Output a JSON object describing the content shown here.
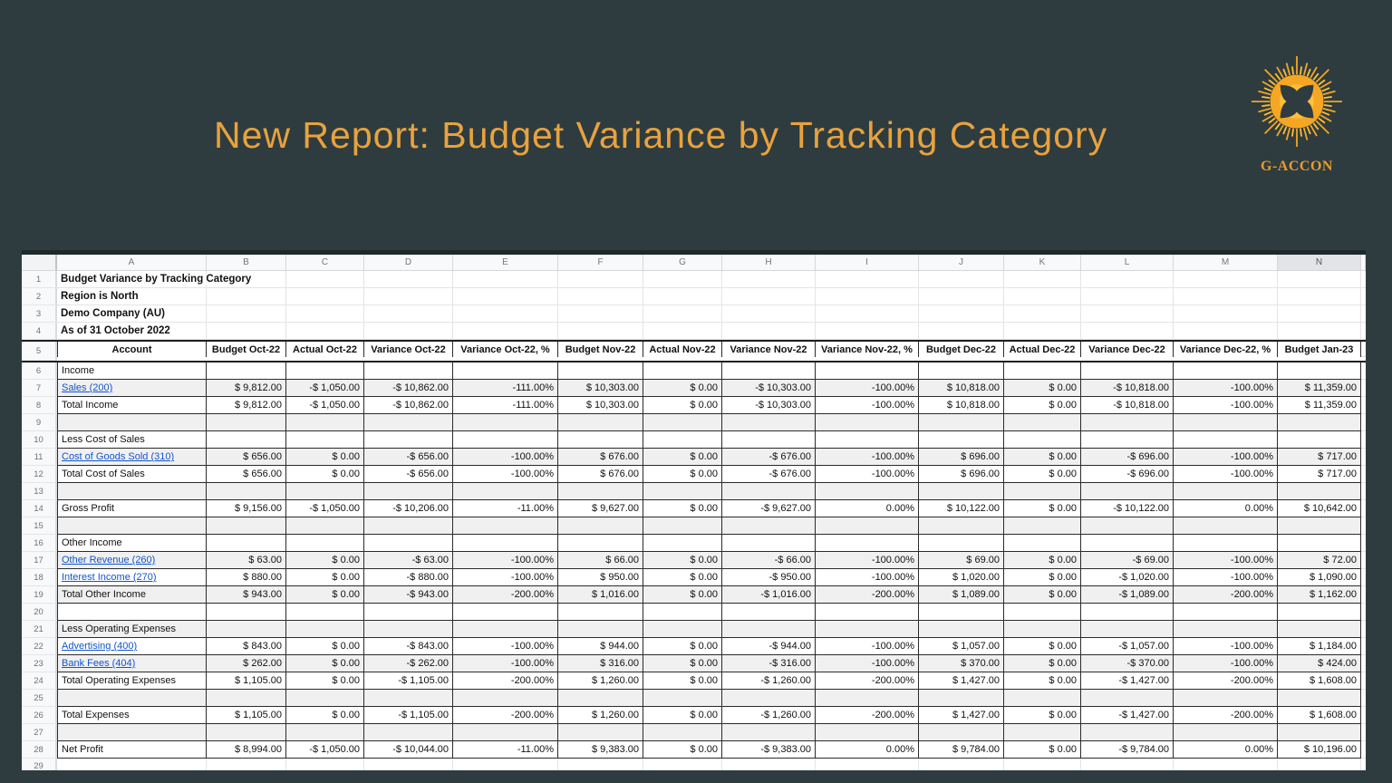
{
  "slide": {
    "title": "New Report: Budget Variance by Tracking Category"
  },
  "logo": {
    "text": "G-ACCON",
    "orange": "#F5A623",
    "yellow": "#FFBE3B"
  },
  "colors": {
    "background": "#2E3C3F",
    "title_text": "#E8A23E",
    "link": "#1155CC",
    "row_band": "#F0F0F0"
  },
  "spreadsheet": {
    "column_letters": [
      "A",
      "B",
      "C",
      "D",
      "E",
      "F",
      "G",
      "H",
      "I",
      "J",
      "K",
      "L",
      "M",
      "N"
    ],
    "selected_column": "N",
    "row_numbers_visible": "1-29",
    "meta_rows": [
      {
        "row": 1,
        "text": "Budget Variance by Tracking Category"
      },
      {
        "row": 2,
        "text": "Region is North"
      },
      {
        "row": 3,
        "text": "Demo Company (AU)"
      },
      {
        "row": 4,
        "text": "As of 31 October 2022"
      }
    ],
    "header": {
      "row": 5,
      "cells": [
        "Account",
        "Budget Oct-22",
        "Actual Oct-22",
        "Variance Oct-22",
        "Variance Oct-22, %",
        "Budget Nov-22",
        "Actual Nov-22",
        "Variance Nov-22",
        "Variance Nov-22, %",
        "Budget Dec-22",
        "Actual Dec-22",
        "Variance Dec-22",
        "Variance Dec-22, %",
        "Budget Jan-23"
      ]
    },
    "rows": [
      {
        "row": 6,
        "type": "section",
        "label": "Income",
        "values": [
          "",
          "",
          "",
          "",
          "",
          "",
          "",
          "",
          "",
          "",
          "",
          "",
          ""
        ]
      },
      {
        "row": 7,
        "type": "link",
        "label": "Sales (200)",
        "values": [
          "$ 9,812.00",
          "-$ 1,050.00",
          "-$ 10,862.00",
          "-111.00%",
          "$ 10,303.00",
          "$ 0.00",
          "-$ 10,303.00",
          "-100.00%",
          "$ 10,818.00",
          "$ 0.00",
          "-$ 10,818.00",
          "-100.00%",
          "$ 11,359.00"
        ]
      },
      {
        "row": 8,
        "type": "total",
        "label": "Total Income",
        "values": [
          "$ 9,812.00",
          "-$ 1,050.00",
          "-$ 10,862.00",
          "-111.00%",
          "$ 10,303.00",
          "$ 0.00",
          "-$ 10,303.00",
          "-100.00%",
          "$ 10,818.00",
          "$ 0.00",
          "-$ 10,818.00",
          "-100.00%",
          "$ 11,359.00"
        ]
      },
      {
        "row": 9,
        "type": "empty",
        "label": "",
        "values": [
          "",
          "",
          "",
          "",
          "",
          "",
          "",
          "",
          "",
          "",
          "",
          "",
          ""
        ]
      },
      {
        "row": 10,
        "type": "section",
        "label": "Less Cost of Sales",
        "values": [
          "",
          "",
          "",
          "",
          "",
          "",
          "",
          "",
          "",
          "",
          "",
          "",
          ""
        ]
      },
      {
        "row": 11,
        "type": "link",
        "label": "Cost of Goods Sold (310)",
        "values": [
          "$ 656.00",
          "$ 0.00",
          "-$ 656.00",
          "-100.00%",
          "$ 676.00",
          "$ 0.00",
          "-$ 676.00",
          "-100.00%",
          "$ 696.00",
          "$ 0.00",
          "-$ 696.00",
          "-100.00%",
          "$ 717.00"
        ]
      },
      {
        "row": 12,
        "type": "total",
        "label": "Total Cost of Sales",
        "values": [
          "$ 656.00",
          "$ 0.00",
          "-$ 656.00",
          "-100.00%",
          "$ 676.00",
          "$ 0.00",
          "-$ 676.00",
          "-100.00%",
          "$ 696.00",
          "$ 0.00",
          "-$ 696.00",
          "-100.00%",
          "$ 717.00"
        ]
      },
      {
        "row": 13,
        "type": "empty",
        "label": "",
        "values": [
          "",
          "",
          "",
          "",
          "",
          "",
          "",
          "",
          "",
          "",
          "",
          "",
          ""
        ]
      },
      {
        "row": 14,
        "type": "total",
        "label": "Gross Profit",
        "values": [
          "$ 9,156.00",
          "-$ 1,050.00",
          "-$ 10,206.00",
          "-11.00%",
          "$ 9,627.00",
          "$ 0.00",
          "-$ 9,627.00",
          "0.00%",
          "$ 10,122.00",
          "$ 0.00",
          "-$ 10,122.00",
          "0.00%",
          "$ 10,642.00"
        ]
      },
      {
        "row": 15,
        "type": "empty",
        "label": "",
        "values": [
          "",
          "",
          "",
          "",
          "",
          "",
          "",
          "",
          "",
          "",
          "",
          "",
          ""
        ]
      },
      {
        "row": 16,
        "type": "section",
        "label": "Other Income",
        "values": [
          "",
          "",
          "",
          "",
          "",
          "",
          "",
          "",
          "",
          "",
          "",
          "",
          ""
        ]
      },
      {
        "row": 17,
        "type": "link",
        "label": "Other Revenue (260)",
        "values": [
          "$ 63.00",
          "$ 0.00",
          "-$ 63.00",
          "-100.00%",
          "$ 66.00",
          "$ 0.00",
          "-$ 66.00",
          "-100.00%",
          "$ 69.00",
          "$ 0.00",
          "-$ 69.00",
          "-100.00%",
          "$ 72.00"
        ]
      },
      {
        "row": 18,
        "type": "link",
        "label": "Interest Income (270)",
        "values": [
          "$ 880.00",
          "$ 0.00",
          "-$ 880.00",
          "-100.00%",
          "$ 950.00",
          "$ 0.00",
          "-$ 950.00",
          "-100.00%",
          "$ 1,020.00",
          "$ 0.00",
          "-$ 1,020.00",
          "-100.00%",
          "$ 1,090.00"
        ]
      },
      {
        "row": 19,
        "type": "total",
        "label": "Total Other Income",
        "values": [
          "$ 943.00",
          "$ 0.00",
          "-$ 943.00",
          "-200.00%",
          "$ 1,016.00",
          "$ 0.00",
          "-$ 1,016.00",
          "-200.00%",
          "$ 1,089.00",
          "$ 0.00",
          "-$ 1,089.00",
          "-200.00%",
          "$ 1,162.00"
        ]
      },
      {
        "row": 20,
        "type": "empty",
        "label": "",
        "values": [
          "",
          "",
          "",
          "",
          "",
          "",
          "",
          "",
          "",
          "",
          "",
          "",
          ""
        ]
      },
      {
        "row": 21,
        "type": "section",
        "label": "Less Operating Expenses",
        "values": [
          "",
          "",
          "",
          "",
          "",
          "",
          "",
          "",
          "",
          "",
          "",
          "",
          ""
        ]
      },
      {
        "row": 22,
        "type": "link",
        "label": "Advertising (400)",
        "values": [
          "$ 843.00",
          "$ 0.00",
          "-$ 843.00",
          "-100.00%",
          "$ 944.00",
          "$ 0.00",
          "-$ 944.00",
          "-100.00%",
          "$ 1,057.00",
          "$ 0.00",
          "-$ 1,057.00",
          "-100.00%",
          "$ 1,184.00"
        ]
      },
      {
        "row": 23,
        "type": "link",
        "label": "Bank Fees (404)",
        "values": [
          "$ 262.00",
          "$ 0.00",
          "-$ 262.00",
          "-100.00%",
          "$ 316.00",
          "$ 0.00",
          "-$ 316.00",
          "-100.00%",
          "$ 370.00",
          "$ 0.00",
          "-$ 370.00",
          "-100.00%",
          "$ 424.00"
        ]
      },
      {
        "row": 24,
        "type": "total",
        "label": "Total Operating Expenses",
        "values": [
          "$ 1,105.00",
          "$ 0.00",
          "-$ 1,105.00",
          "-200.00%",
          "$ 1,260.00",
          "$ 0.00",
          "-$ 1,260.00",
          "-200.00%",
          "$ 1,427.00",
          "$ 0.00",
          "-$ 1,427.00",
          "-200.00%",
          "$ 1,608.00"
        ]
      },
      {
        "row": 25,
        "type": "empty",
        "label": "",
        "values": [
          "",
          "",
          "",
          "",
          "",
          "",
          "",
          "",
          "",
          "",
          "",
          "",
          ""
        ]
      },
      {
        "row": 26,
        "type": "total",
        "label": "Total Expenses",
        "values": [
          "$ 1,105.00",
          "$ 0.00",
          "-$ 1,105.00",
          "-200.00%",
          "$ 1,260.00",
          "$ 0.00",
          "-$ 1,260.00",
          "-200.00%",
          "$ 1,427.00",
          "$ 0.00",
          "-$ 1,427.00",
          "-200.00%",
          "$ 1,608.00"
        ]
      },
      {
        "row": 27,
        "type": "empty",
        "label": "",
        "values": [
          "",
          "",
          "",
          "",
          "",
          "",
          "",
          "",
          "",
          "",
          "",
          "",
          ""
        ]
      },
      {
        "row": 28,
        "type": "total",
        "label": "Net Profit",
        "values": [
          "$ 8,994.00",
          "-$ 1,050.00",
          "-$ 10,044.00",
          "-11.00%",
          "$ 9,383.00",
          "$ 0.00",
          "-$ 9,383.00",
          "0.00%",
          "$ 9,784.00",
          "$ 0.00",
          "-$ 9,784.00",
          "0.00%",
          "$ 10,196.00"
        ]
      },
      {
        "row": 29,
        "type": "outside",
        "label": "",
        "values": [
          "",
          "",
          "",
          "",
          "",
          "",
          "",
          "",
          "",
          "",
          "",
          "",
          ""
        ]
      }
    ]
  }
}
